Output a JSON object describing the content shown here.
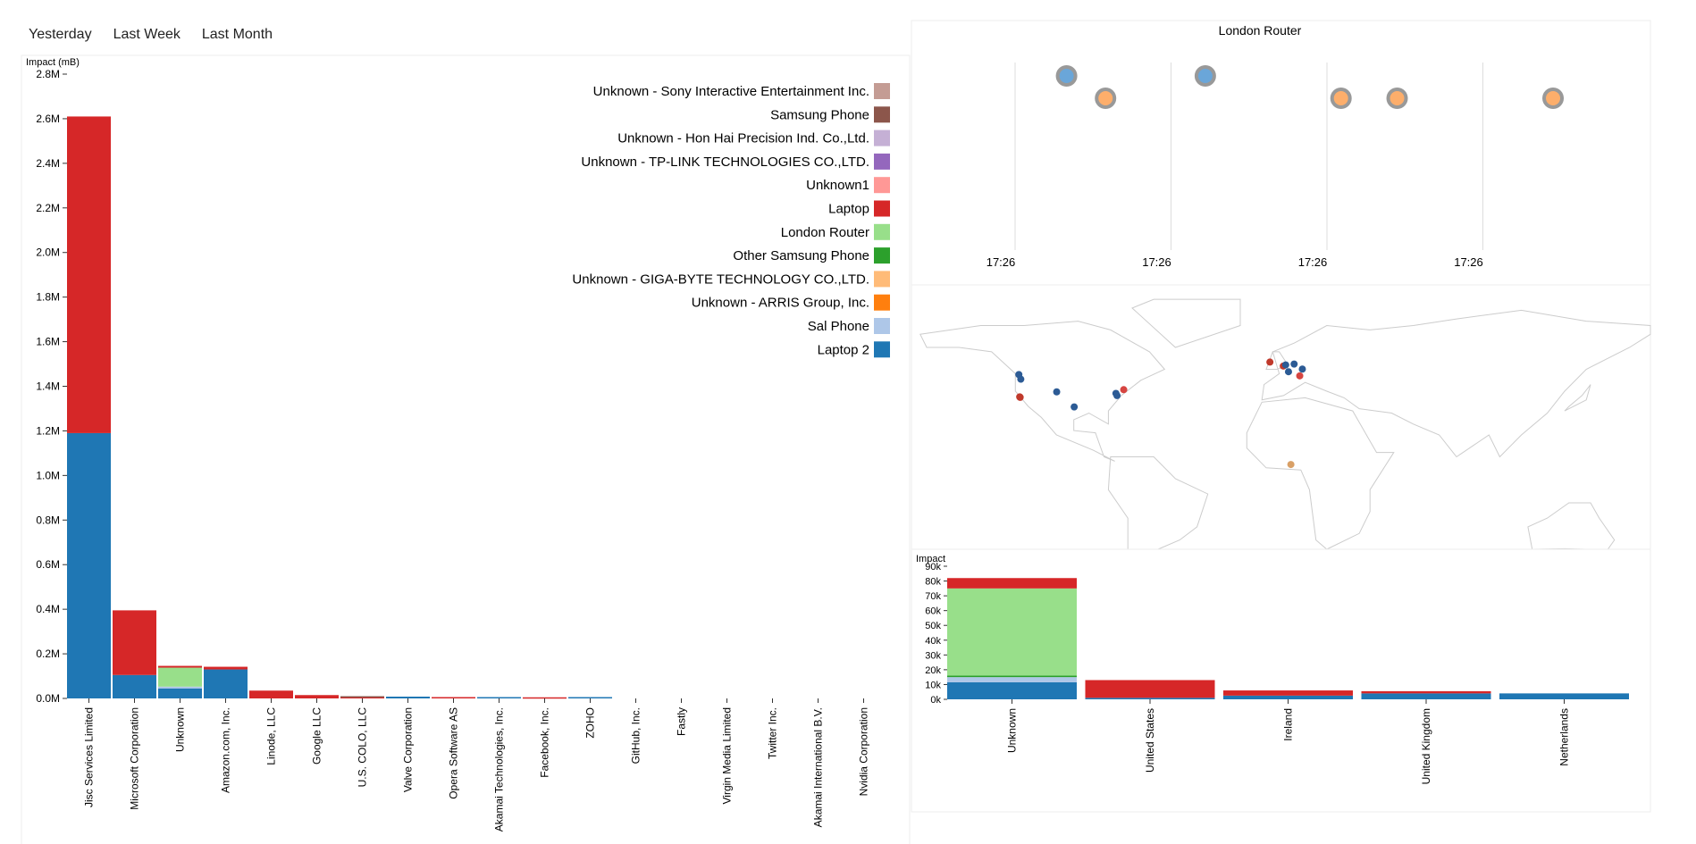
{
  "tabs": [
    "Yesterday",
    "Last Week",
    "Last Month"
  ],
  "colors": {
    "Unknown - Sony Interactive Entertainment Inc.": "#c49c94",
    "Samsung Phone": "#8c564b",
    "Unknown - Hon Hai Precision Ind. Co.,Ltd.": "#c5b0d5",
    "Unknown - TP-LINK TECHNOLOGIES CO.,LTD.": "#9467bd",
    "Unknown1": "#ff9896",
    "Laptop": "#d62728",
    "London Router": "#98df8a",
    "Other Samsung Phone": "#2ca02c",
    "Unknown - GIGA-BYTE TECHNOLOGY CO.,LTD.": "#ffbb78",
    "Unknown - ARRIS Group, Inc.": "#ff7f0e",
    "Sal Phone": "#aec7e8",
    "Laptop 2": "#1f77b4"
  },
  "chart_data": [
    {
      "type": "bar",
      "stacked": true,
      "ylabel": "Impact (mB)",
      "ylim": [
        0,
        2800000
      ],
      "yticks": [
        "0.0M",
        "0.2M",
        "0.4M",
        "0.6M",
        "0.8M",
        "1.0M",
        "1.2M",
        "1.4M",
        "1.6M",
        "1.8M",
        "2.0M",
        "2.2M",
        "2.4M",
        "2.6M",
        "2.8M"
      ],
      "legend": [
        "Unknown - Sony Interactive Entertainment Inc.",
        "Samsung Phone",
        "Unknown - Hon Hai Precision Ind. Co.,Ltd.",
        "Unknown - TP-LINK TECHNOLOGIES CO.,LTD.",
        "Unknown1",
        "Laptop",
        "London Router",
        "Other Samsung Phone",
        "Unknown - GIGA-BYTE TECHNOLOGY CO.,LTD.",
        "Unknown - ARRIS Group, Inc.",
        "Sal Phone",
        "Laptop 2"
      ],
      "legend_position": "top-right",
      "categories": [
        "Jisc Services Limited",
        "Microsoft Corporation",
        "Unknown",
        "Amazon.com, Inc.",
        "Linode, LLC",
        "Google LLC",
        "U.S. COLO, LLC",
        "Valve Corporation",
        "Opera Software AS",
        "Akamai Technologies, Inc.",
        "Facebook, Inc.",
        "ZOHO",
        "GitHub, Inc.",
        "Fastly",
        "Virgin Media Limited",
        "Twitter Inc.",
        "Akamai International B.V.",
        "Nvidia Corporation"
      ],
      "series": [
        {
          "name": "Laptop 2",
          "values": [
            1190000,
            105000,
            45000,
            130000,
            0,
            0,
            0,
            8000,
            0,
            6000,
            0,
            6000,
            0,
            0,
            0,
            0,
            0,
            0
          ]
        },
        {
          "name": "Sal Phone",
          "values": [
            0,
            0,
            8000,
            0,
            0,
            0,
            0,
            0,
            0,
            0,
            0,
            0,
            0,
            0,
            0,
            0,
            0,
            0
          ]
        },
        {
          "name": "London Router",
          "values": [
            0,
            0,
            85000,
            0,
            0,
            0,
            0,
            0,
            0,
            0,
            0,
            0,
            0,
            0,
            0,
            0,
            0,
            0
          ]
        },
        {
          "name": "Laptop",
          "values": [
            1420000,
            290000,
            8000,
            12000,
            35000,
            15000,
            8000,
            0,
            6000,
            0,
            5000,
            0,
            0,
            0,
            0,
            0,
            0,
            0
          ]
        },
        {
          "name": "Samsung Phone",
          "values": [
            0,
            0,
            0,
            0,
            0,
            0,
            2000,
            0,
            0,
            0,
            0,
            0,
            0,
            0,
            0,
            0,
            0,
            0
          ]
        }
      ]
    },
    {
      "type": "scatter",
      "title": "London Router",
      "xticks": [
        "17:26",
        "17:26",
        "17:26",
        "17:26"
      ],
      "points": [
        {
          "x": 0.33,
          "row": 1,
          "series": "Laptop 2"
        },
        {
          "x": 0.58,
          "row": 2,
          "series": "Unknown - GIGA-BYTE TECHNOLOGY CO.,LTD."
        },
        {
          "x": 1.22,
          "row": 1,
          "series": "Laptop 2"
        },
        {
          "x": 2.09,
          "row": 2,
          "series": "Unknown - GIGA-BYTE TECHNOLOGY CO.,LTD."
        },
        {
          "x": 2.45,
          "row": 2,
          "series": "Unknown - GIGA-BYTE TECHNOLOGY CO.,LTD."
        },
        {
          "x": 3.45,
          "row": 2,
          "series": "Unknown - GIGA-BYTE TECHNOLOGY CO.,LTD."
        }
      ]
    },
    {
      "type": "map",
      "points": [
        {
          "lon": -122.4,
          "lat": 47.6,
          "color": "#2c5b95"
        },
        {
          "lon": -121.5,
          "lat": 45.5,
          "color": "#2c5b95"
        },
        {
          "lon": -122.0,
          "lat": 37.4,
          "color": "#c0392b"
        },
        {
          "lon": -121.8,
          "lat": 37.2,
          "color": "#c0392b"
        },
        {
          "lon": -104.9,
          "lat": 39.7,
          "color": "#2c5b95"
        },
        {
          "lon": -96.8,
          "lat": 32.8,
          "color": "#2c5b95"
        },
        {
          "lon": -77.5,
          "lat": 39.0,
          "color": "#2c5b95"
        },
        {
          "lon": -77.0,
          "lat": 38.0,
          "color": "#2c5b95"
        },
        {
          "lon": -73.9,
          "lat": 40.7,
          "color": "#d64541"
        },
        {
          "lon": -6.3,
          "lat": 53.3,
          "color": "#c0392b"
        },
        {
          "lon": -0.1,
          "lat": 51.5,
          "color": "#c0392b"
        },
        {
          "lon": 1.0,
          "lat": 52.0,
          "color": "#2c5b95"
        },
        {
          "lon": 4.9,
          "lat": 52.4,
          "color": "#2c5b95"
        },
        {
          "lon": 8.7,
          "lat": 50.1,
          "color": "#2c5b95"
        },
        {
          "lon": 2.3,
          "lat": 48.9,
          "color": "#2c5b95"
        },
        {
          "lon": 7.5,
          "lat": 47.0,
          "color": "#d64541"
        },
        {
          "lon": 3.4,
          "lat": 6.5,
          "color": "#d9a066"
        }
      ]
    },
    {
      "type": "bar",
      "stacked": true,
      "ylabel": "Impact",
      "ylim": [
        0,
        90000
      ],
      "yticks": [
        "0k",
        "10k",
        "20k",
        "30k",
        "40k",
        "50k",
        "60k",
        "70k",
        "80k",
        "90k"
      ],
      "categories": [
        "Unknown",
        "United States",
        "Ireland",
        "United Kingdom",
        "Netherlands"
      ],
      "series": [
        {
          "name": "Laptop 2",
          "values": [
            11500,
            1000,
            2500,
            4000,
            4000
          ]
        },
        {
          "name": "Sal Phone",
          "values": [
            3500,
            0,
            0,
            0,
            0
          ]
        },
        {
          "name": "Other Samsung Phone",
          "values": [
            1000,
            0,
            0,
            0,
            0
          ]
        },
        {
          "name": "London Router",
          "values": [
            59000,
            0,
            0,
            0,
            0
          ]
        },
        {
          "name": "Laptop",
          "values": [
            7000,
            12000,
            3500,
            1500,
            0
          ]
        }
      ]
    }
  ]
}
